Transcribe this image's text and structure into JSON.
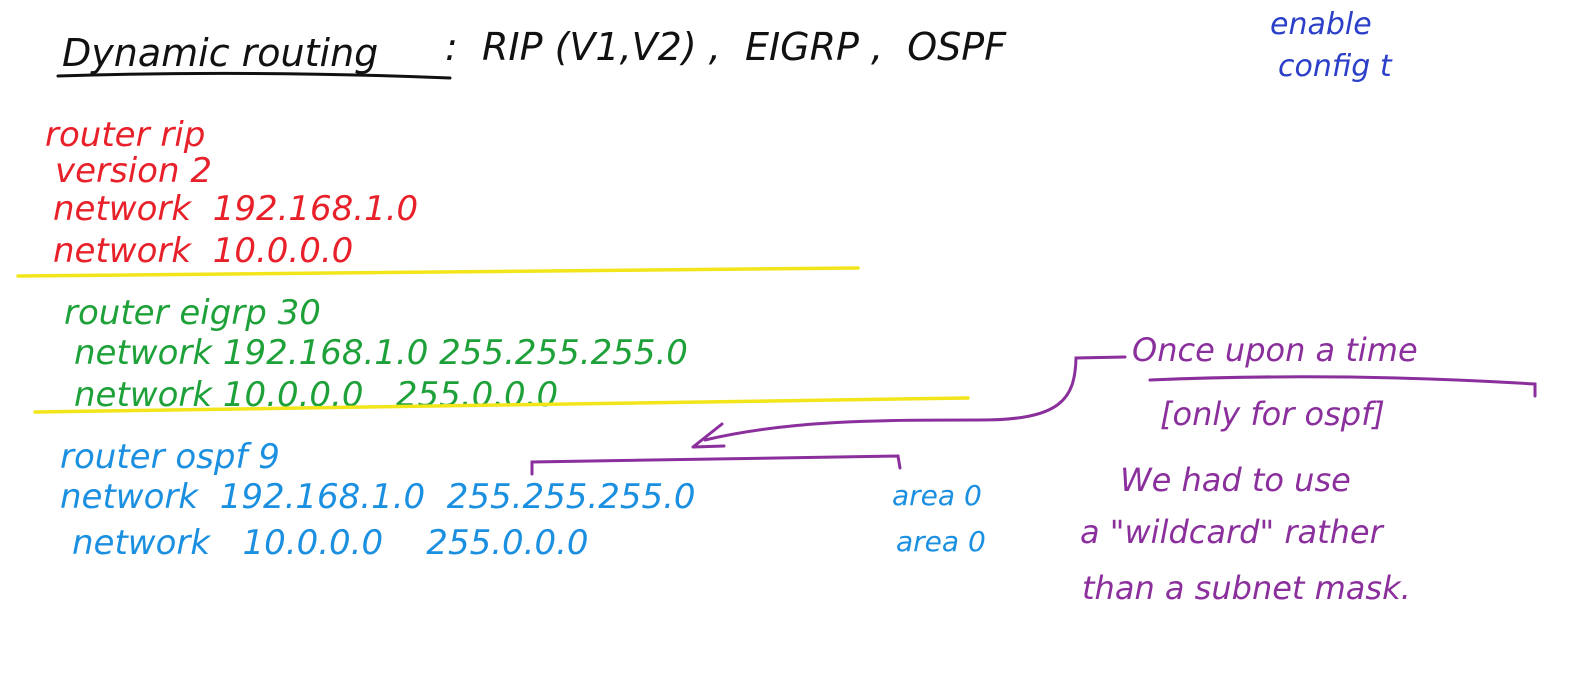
{
  "title": {
    "heading": "Dynamic routing",
    "protocols": ":  RIP (V1,V2) ,  EIGRP ,  OSPF"
  },
  "mode_note": [
    "enable",
    "config t"
  ],
  "rip": {
    "lines": [
      "router rip",
      "version 2",
      "network  192.168.1.0",
      "network  10.0.0.0"
    ]
  },
  "eigrp": {
    "lines": [
      "router eigrp 30",
      "network 192.168.1.0 255.255.255.0",
      "network 10.0.0.0   255.0.0.0"
    ]
  },
  "ospf": {
    "header": "router ospf 9",
    "line1_net": "network  192.168.1.0  255.255.255.0",
    "line1_area": "area 0",
    "line2_net": "network   10.0.0.0    255.0.0.0",
    "line2_area": "area 0"
  },
  "note": {
    "lines": [
      "Once upon a time",
      "[only for ospf]",
      "We had to use",
      "a \"wildcard\" rather",
      "than a subnet mask."
    ]
  },
  "colors": {
    "title": "#111111",
    "rip": "#e8202a",
    "eigrp": "#1fa13a",
    "ospf": "#1b8fe0",
    "note": "#8a2f9c",
    "mode_note": "#2b3fc8",
    "separator": "#f2e51a"
  }
}
